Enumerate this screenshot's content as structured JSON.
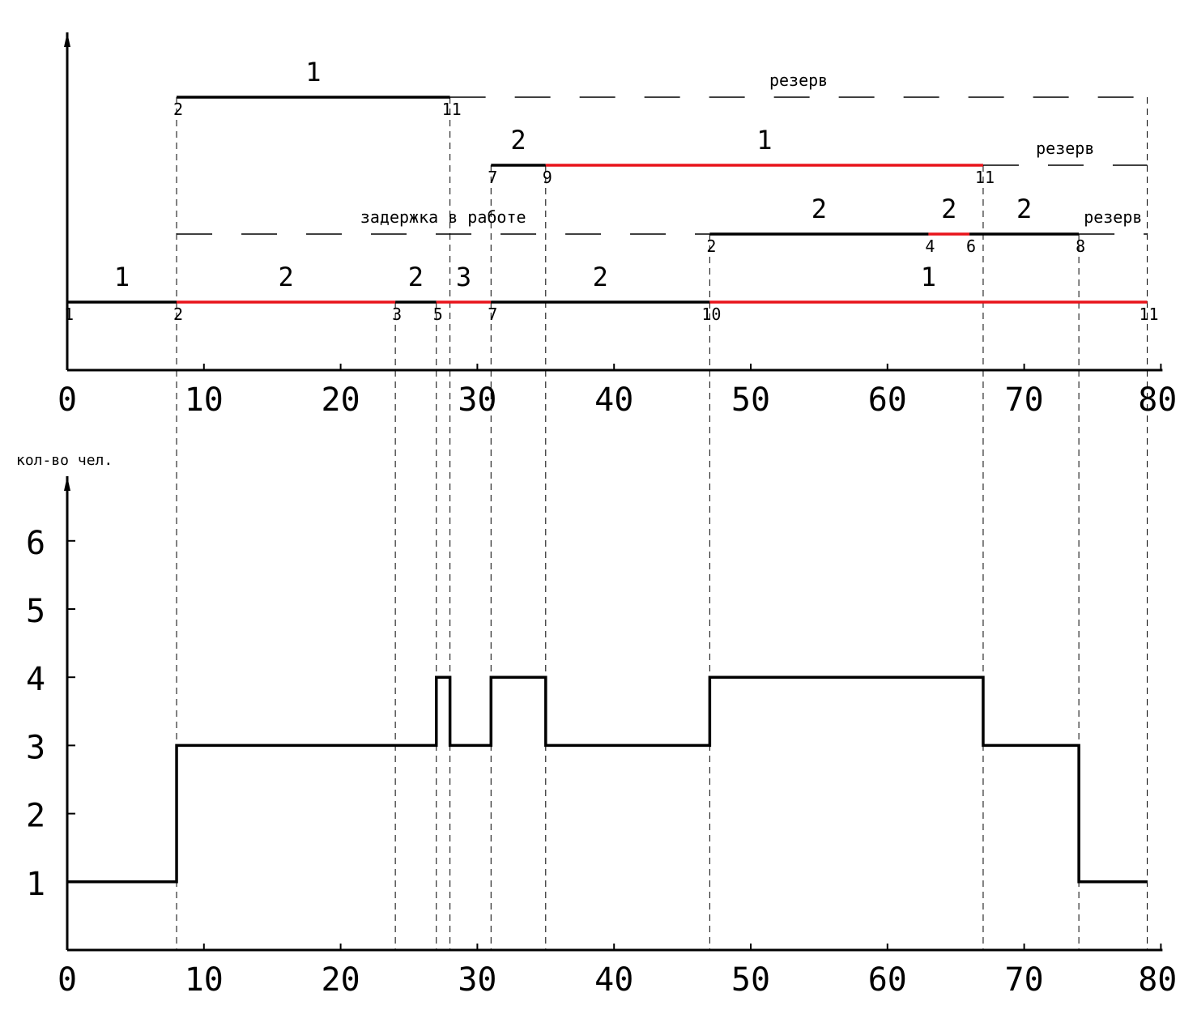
{
  "colors": {
    "critical": "#e8141b",
    "normal": "#000000",
    "axis": "#000000"
  },
  "chart_data": [
    {
      "type": "gantt",
      "x_range": [
        0,
        80
      ],
      "x_ticks": [
        0,
        10,
        20,
        30,
        40,
        50,
        60,
        70,
        80
      ],
      "x_tick_labels": [
        "0",
        "10",
        "20",
        "30",
        "40",
        "50",
        "60",
        "70",
        "80"
      ],
      "rows": [
        {
          "row": 0,
          "segments": [
            {
              "start": 0,
              "end": 8,
              "label": "1",
              "critical": false,
              "start_event": "1",
              "end_event": "2"
            },
            {
              "start": 8,
              "end": 24,
              "label": "2",
              "critical": true,
              "start_event": "",
              "end_event": "3"
            },
            {
              "start": 24,
              "end": 27,
              "label": "2",
              "critical": false,
              "start_event": "",
              "end_event": "5"
            },
            {
              "start": 27,
              "end": 31,
              "label": "3",
              "critical": true,
              "start_event": "",
              "end_event": "7"
            },
            {
              "start": 31,
              "end": 47,
              "label": "2",
              "critical": false,
              "start_event": "",
              "end_event": "10"
            },
            {
              "start": 47,
              "end": 79,
              "label": "1",
              "critical": true,
              "start_event": "",
              "end_event": "11"
            }
          ],
          "dashed": []
        },
        {
          "row": 1,
          "segments": [
            {
              "start": 47,
              "end": 63,
              "label": "2",
              "critical": false,
              "start_event": "2",
              "end_event": "4"
            },
            {
              "start": 63,
              "end": 66,
              "label": "2",
              "critical": true,
              "start_event": "",
              "end_event": "6"
            },
            {
              "start": 66,
              "end": 74,
              "label": "2",
              "critical": false,
              "start_event": "",
              "end_event": "8"
            }
          ],
          "dashed": [
            {
              "start": 8,
              "end": 47,
              "label": "задержка в работе"
            },
            {
              "start": 74,
              "end": 79,
              "label": "резерв"
            }
          ]
        },
        {
          "row": 2,
          "segments": [
            {
              "start": 31,
              "end": 35,
              "label": "2",
              "critical": false,
              "start_event": "7",
              "end_event": "9"
            },
            {
              "start": 35,
              "end": 67,
              "label": "1",
              "critical": true,
              "start_event": "",
              "end_event": "11"
            }
          ],
          "dashed": [
            {
              "start": 67,
              "end": 79,
              "label": "резерв"
            }
          ]
        },
        {
          "row": 3,
          "segments": [
            {
              "start": 8,
              "end": 28,
              "label": "1",
              "critical": false,
              "start_event": "2",
              "end_event": "11"
            }
          ],
          "dashed": [
            {
              "start": 28,
              "end": 79,
              "label": "резерв"
            }
          ]
        }
      ],
      "guides": [
        8,
        24,
        27,
        28,
        31,
        35,
        47,
        67,
        74,
        79
      ]
    },
    {
      "type": "step",
      "ylabel": "кол-во чел.",
      "x_range": [
        0,
        80
      ],
      "y_range": [
        0,
        7
      ],
      "x_ticks": [
        0,
        10,
        20,
        30,
        40,
        50,
        60,
        70,
        80
      ],
      "x_tick_labels": [
        "0",
        "10",
        "20",
        "30",
        "40",
        "50",
        "60",
        "70",
        "80"
      ],
      "y_ticks": [
        1,
        2,
        3,
        4,
        5,
        6
      ],
      "y_tick_labels": [
        "1",
        "2",
        "3",
        "4",
        "5",
        "6"
      ],
      "steps": [
        {
          "start": 0,
          "end": 8,
          "value": 1
        },
        {
          "start": 8,
          "end": 27,
          "value": 3
        },
        {
          "start": 27,
          "end": 28,
          "value": 4
        },
        {
          "start": 28,
          "end": 31,
          "value": 3
        },
        {
          "start": 31,
          "end": 35,
          "value": 4
        },
        {
          "start": 35,
          "end": 47,
          "value": 3
        },
        {
          "start": 47,
          "end": 67,
          "value": 4
        },
        {
          "start": 67,
          "end": 74,
          "value": 3
        },
        {
          "start": 74,
          "end": 79,
          "value": 1
        }
      ],
      "guides": [
        8,
        24,
        27,
        28,
        31,
        35,
        47,
        67,
        74,
        79
      ]
    }
  ]
}
